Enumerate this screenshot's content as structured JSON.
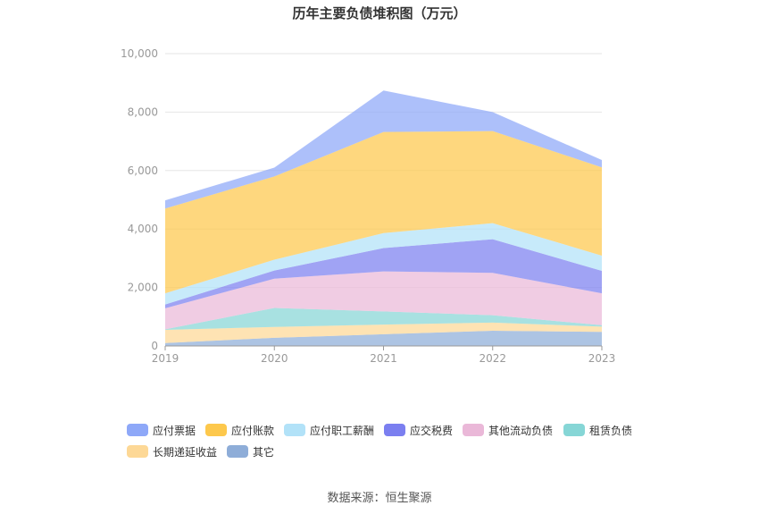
{
  "title": "历年主要负债堆积图（万元）",
  "source": "数据来源：恒生聚源",
  "chart_data": {
    "type": "area",
    "stacked": true,
    "title": "历年主要负债堆积图（万元）",
    "x": [
      "2019",
      "2020",
      "2021",
      "2022",
      "2023"
    ],
    "ylim": [
      0,
      10000
    ],
    "yticks": [
      "0",
      "2,000",
      "4,000",
      "6,000",
      "8,000",
      "10,000"
    ],
    "grid": true,
    "legend_position": "bottom",
    "series": [
      {
        "name": "其它",
        "color": "#8eadd8",
        "values": [
          100,
          280,
          400,
          520,
          480
        ]
      },
      {
        "name": "长期递延收益",
        "color": "#fdd896",
        "values": [
          450,
          370,
          330,
          280,
          180
        ]
      },
      {
        "name": "租赁负债",
        "color": "#86d6d6",
        "values": [
          20,
          650,
          450,
          250,
          50
        ]
      },
      {
        "name": "其他流动负债",
        "color": "#eab8d8",
        "values": [
          720,
          1000,
          1370,
          1450,
          1090
        ]
      },
      {
        "name": "应交税费",
        "color": "#7b7ff0",
        "values": [
          130,
          280,
          800,
          1150,
          770
        ]
      },
      {
        "name": "应付职工薪酬",
        "color": "#b2e2f8",
        "values": [
          380,
          370,
          510,
          550,
          520
        ]
      },
      {
        "name": "应付账款",
        "color": "#fdc84c",
        "values": [
          2900,
          2850,
          3460,
          3150,
          3020
        ]
      },
      {
        "name": "应付票据",
        "color": "#8ea8f8",
        "values": [
          280,
          300,
          1420,
          650,
          250
        ]
      }
    ],
    "legend_order": [
      "应付票据",
      "应付账款",
      "应付职工薪酬",
      "应交税费",
      "其他流动负债",
      "租赁负债",
      "长期递延收益",
      "其它"
    ]
  }
}
